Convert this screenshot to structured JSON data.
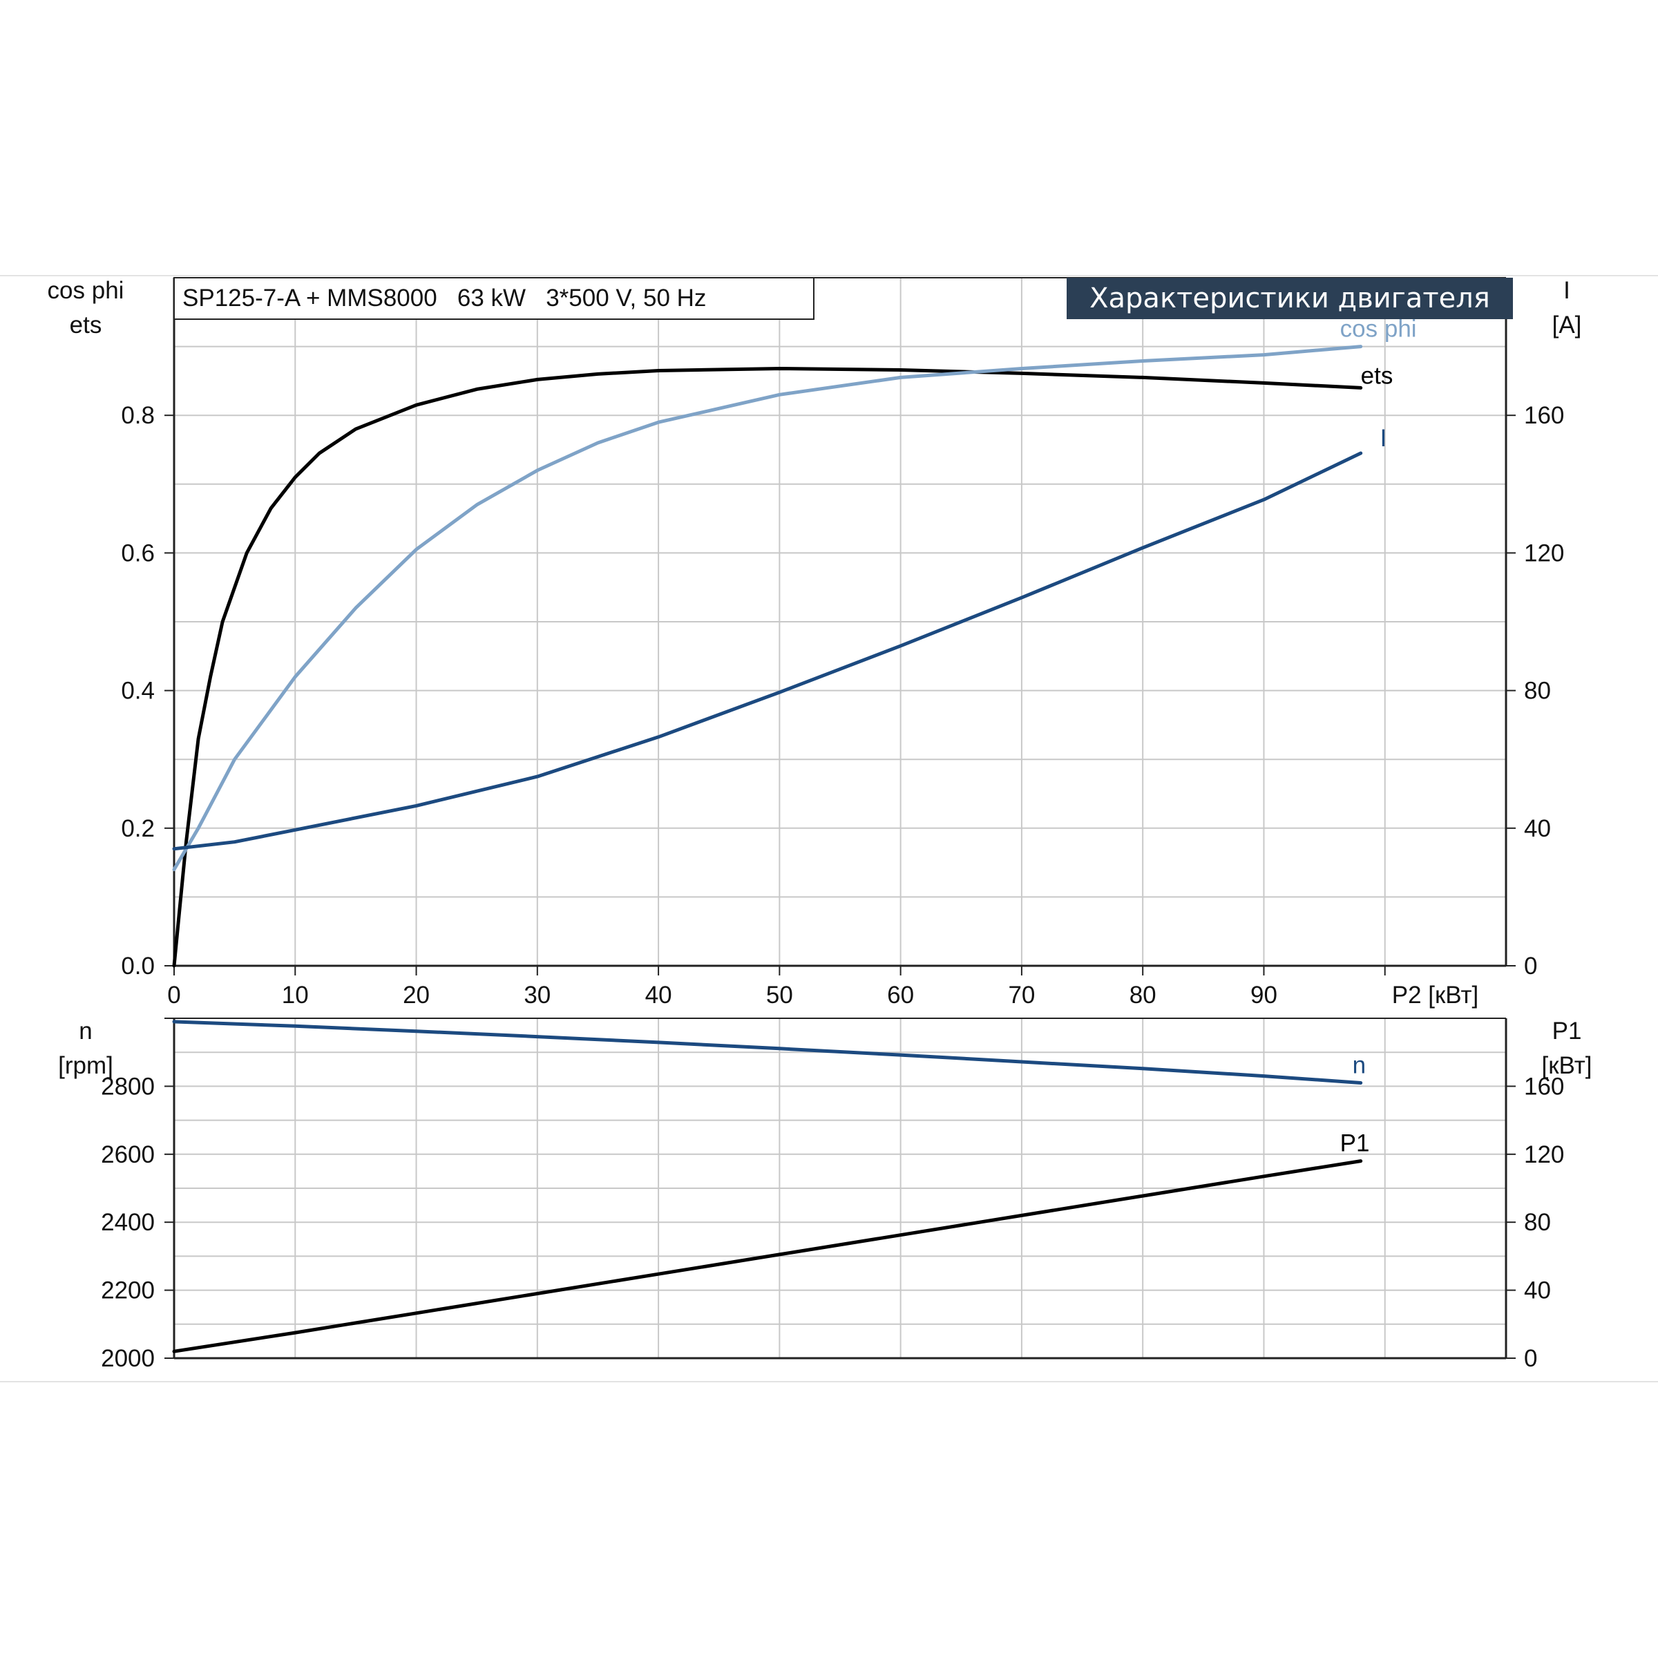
{
  "header": {
    "model_text": "SP125-7-A + MMS8000   63 kW   3*500 V, 50 Hz",
    "title": "Характеристики двигателя",
    "title_bg": "#2b3f55"
  },
  "colors": {
    "ets": "#000000",
    "cos_phi": "#7fa3c7",
    "current": "#1c4a80",
    "n": "#1c4a80",
    "p1": "#000000",
    "grid": "#c8c8c8",
    "axis": "#222222"
  },
  "chart_data": [
    {
      "type": "line",
      "x_axis": {
        "label": "P2 [кВт]",
        "range": [
          0,
          110
        ],
        "ticks": [
          0,
          10,
          20,
          30,
          40,
          50,
          60,
          70,
          80,
          90
        ]
      },
      "y_left": {
        "label_lines": [
          "cos phi",
          "ets"
        ],
        "range": [
          0,
          1.0
        ],
        "ticks": [
          0.0,
          0.2,
          0.4,
          0.6,
          0.8
        ],
        "tick_labels": [
          "0.0",
          "0.2",
          "0.4",
          "0.6",
          "0.8"
        ]
      },
      "y_right": {
        "label_lines": [
          "I",
          "[A]"
        ],
        "range": [
          0,
          200
        ],
        "ticks": [
          0,
          40,
          80,
          120,
          160
        ],
        "tick_labels": [
          "0",
          "40",
          "80",
          "120",
          "160"
        ]
      },
      "grid": true,
      "series": [
        {
          "name": "ets",
          "axis": "left",
          "color_key": "ets",
          "x": [
            0,
            1,
            2,
            3,
            4,
            6,
            8,
            10,
            12,
            15,
            20,
            25,
            30,
            35,
            40,
            50,
            60,
            70,
            80,
            90,
            98
          ],
          "y": [
            0.0,
            0.18,
            0.33,
            0.42,
            0.5,
            0.6,
            0.665,
            0.71,
            0.745,
            0.78,
            0.815,
            0.838,
            0.852,
            0.86,
            0.865,
            0.868,
            0.866,
            0.861,
            0.855,
            0.847,
            0.84
          ]
        },
        {
          "name": "cos phi",
          "axis": "left",
          "color_key": "cos_phi",
          "x": [
            0,
            2,
            5,
            10,
            15,
            20,
            25,
            30,
            35,
            40,
            50,
            60,
            70,
            80,
            90,
            98
          ],
          "y": [
            0.14,
            0.2,
            0.3,
            0.42,
            0.52,
            0.605,
            0.67,
            0.72,
            0.76,
            0.79,
            0.83,
            0.855,
            0.868,
            0.879,
            0.888,
            0.9
          ]
        },
        {
          "name": "I",
          "axis": "right",
          "color_key": "current",
          "x": [
            0,
            5,
            10,
            20,
            30,
            40,
            50,
            60,
            70,
            80,
            90,
            98
          ],
          "y": [
            34,
            36,
            39.5,
            46.5,
            55,
            66.5,
            79.5,
            93,
            107,
            121.5,
            135.5,
            149
          ]
        }
      ]
    },
    {
      "type": "line",
      "x_axis": {
        "range": [
          0,
          110
        ]
      },
      "y_left": {
        "label_lines": [
          "n",
          "[rpm]"
        ],
        "range": [
          2000,
          3000
        ],
        "ticks": [
          2000,
          2200,
          2400,
          2600,
          2800
        ],
        "tick_labels": [
          "2000",
          "2200",
          "2400",
          "2600",
          "2800"
        ]
      },
      "y_right": {
        "label_lines": [
          "P1",
          "[кВт]"
        ],
        "range": [
          0,
          200
        ],
        "ticks": [
          0,
          40,
          80,
          120,
          160
        ],
        "tick_labels": [
          "0",
          "40",
          "80",
          "120",
          "160"
        ]
      },
      "grid": true,
      "series": [
        {
          "name": "n",
          "axis": "left",
          "color_key": "n",
          "x": [
            0,
            10,
            20,
            30,
            40,
            50,
            60,
            70,
            80,
            90,
            98
          ],
          "y": [
            2990,
            2977,
            2962,
            2946,
            2929,
            2911,
            2892,
            2872,
            2852,
            2830,
            2810
          ]
        },
        {
          "name": "P1",
          "axis": "right",
          "color_key": "p1",
          "x": [
            0,
            10,
            20,
            30,
            40,
            50,
            60,
            70,
            80,
            90,
            98
          ],
          "y": [
            4,
            15,
            26.5,
            38,
            49.5,
            61,
            72.5,
            84,
            95.5,
            107,
            116
          ]
        }
      ]
    }
  ]
}
